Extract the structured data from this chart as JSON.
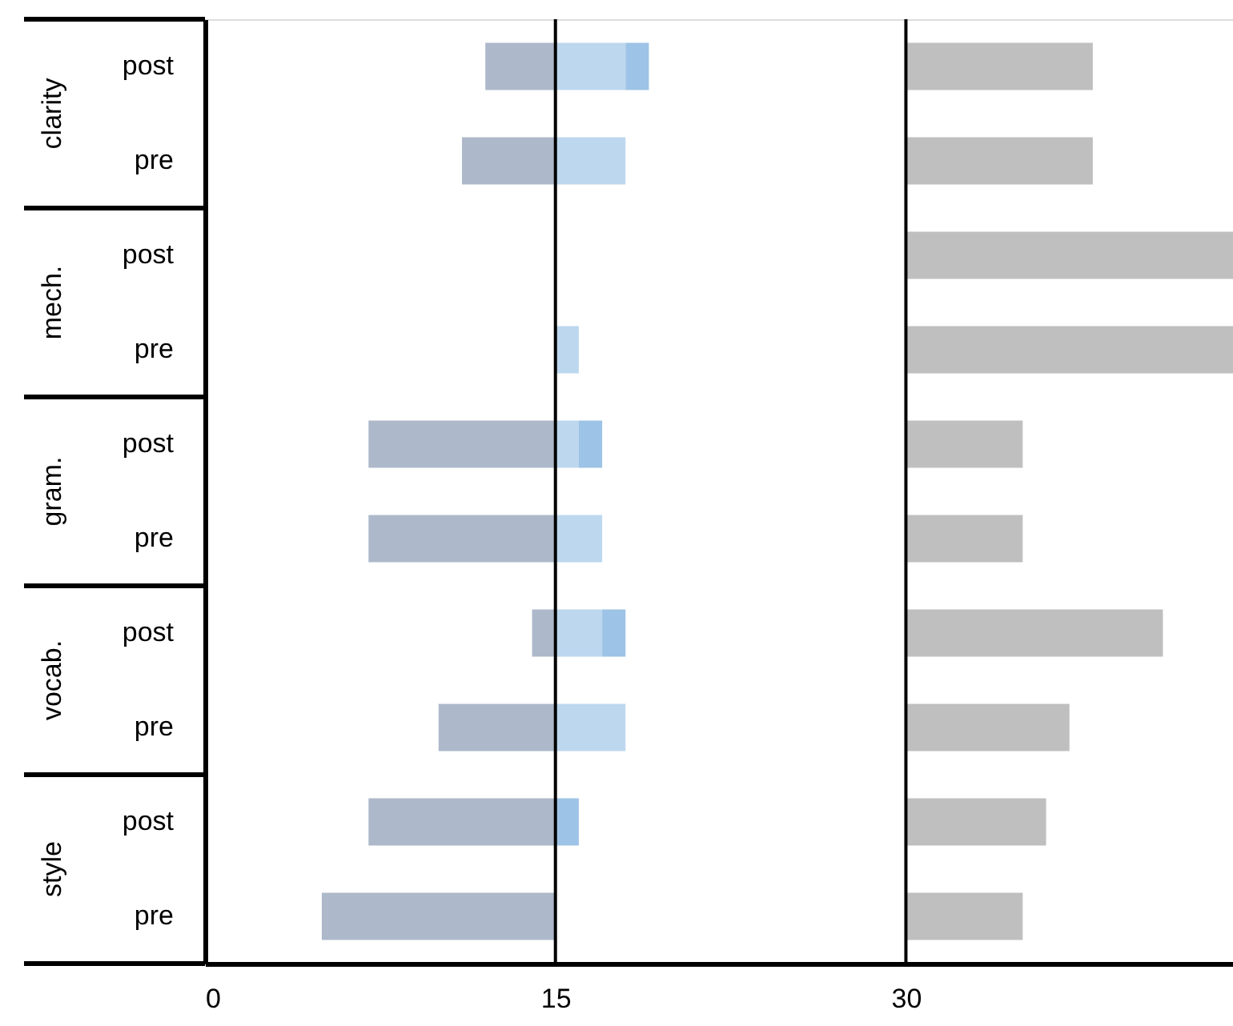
{
  "chart_data": {
    "type": "bar",
    "orientation": "horizontal",
    "categories": [
      "post",
      "pre",
      "post",
      "pre",
      "post",
      "pre",
      "post",
      "pre",
      "post",
      "pre"
    ],
    "series": [
      {
        "color": "#adb9ca",
        "base": [
          12,
          11,
          null,
          null,
          7,
          7,
          14,
          10,
          7,
          5
        ],
        "values": [
          3,
          4,
          null,
          null,
          8,
          8,
          1,
          5,
          8,
          10
        ]
      },
      {
        "color": "#bdd7ee",
        "base": [
          15,
          15,
          null,
          15,
          15,
          15,
          15,
          15,
          null,
          null
        ],
        "values": [
          3,
          3,
          null,
          1,
          1,
          2,
          2,
          3,
          null,
          null
        ]
      },
      {
        "color": "#9dc3e6",
        "base": [
          18,
          null,
          null,
          null,
          16,
          null,
          17,
          null,
          15,
          null
        ],
        "values": [
          1,
          null,
          null,
          null,
          1,
          null,
          1,
          null,
          1,
          null
        ]
      },
      {
        "color": "#bfbfbf",
        "base": [
          30,
          30,
          30,
          30,
          30,
          30,
          30,
          30,
          30,
          30
        ],
        "values": [
          8,
          8,
          14,
          14,
          5,
          5,
          11,
          7,
          6,
          5
        ]
      }
    ],
    "annotations": [
      "clarity",
      "mech.",
      "gram.",
      "vocab.",
      "style"
    ],
    "xlim": [
      0,
      44
    ],
    "xticks": [
      0,
      15,
      30
    ],
    "ref_lines": [
      {
        "axis": "x",
        "value": 15,
        "color": "#000000"
      },
      {
        "axis": "x",
        "value": 30,
        "color": "#000000"
      }
    ],
    "grid": false
  }
}
